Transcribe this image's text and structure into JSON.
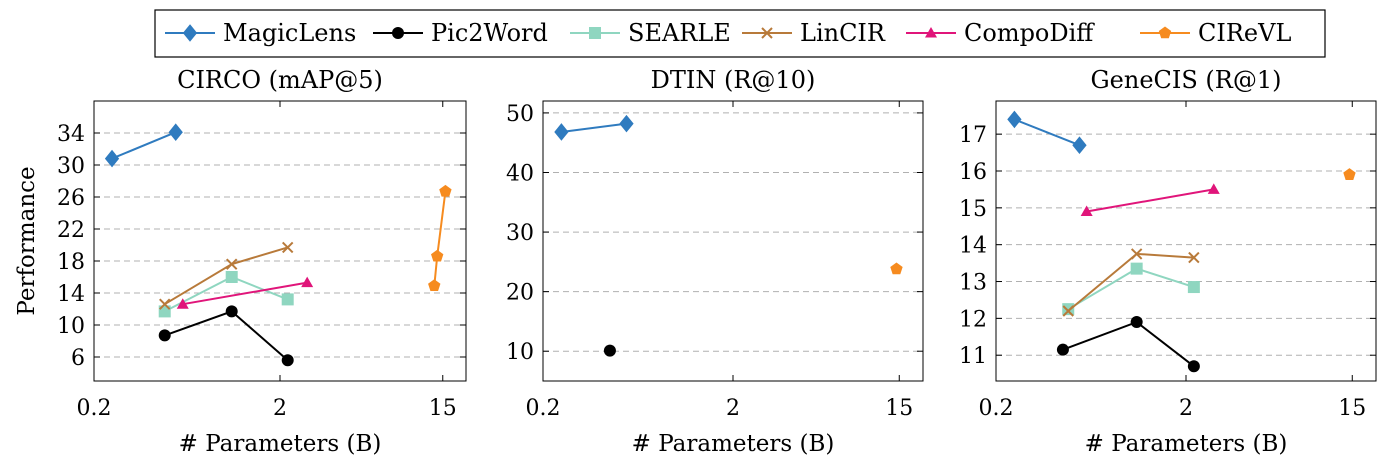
{
  "chart_data": {
    "type": "line",
    "legend": {
      "placement": "top",
      "entries": [
        "MagicLens",
        "Pic2Word",
        "SEARLE",
        "LinCIR",
        "CompoDiff",
        "CIReVL"
      ]
    },
    "series_styles": [
      {
        "name": "MagicLens",
        "color": "#2f7bbf",
        "marker": "diamond"
      },
      {
        "name": "Pic2Word",
        "color": "#000000",
        "marker": "circle"
      },
      {
        "name": "SEARLE",
        "color": "#8fd6c0",
        "marker": "square"
      },
      {
        "name": "LinCIR",
        "color": "#b87a3a",
        "marker": "cross"
      },
      {
        "name": "CompoDiff",
        "color": "#e0157a",
        "marker": "triangle"
      },
      {
        "name": "CIReVL",
        "color": "#f68b1f",
        "marker": "pentagon"
      }
    ],
    "x_scale": "log",
    "xlabel": "# Parameters (B)",
    "ylabel": "Performance",
    "grid": "horizontal-dashed",
    "panels": [
      {
        "title": "CIRCO (mAP@5)",
        "xlim": [
          0.2,
          20
        ],
        "xticks": [
          0.2,
          2,
          15
        ],
        "xtick_labels": [
          "0.2",
          "2",
          "15"
        ],
        "ylim": [
          3,
          38
        ],
        "yticks": [
          6,
          10,
          14,
          18,
          22,
          26,
          30,
          34
        ],
        "ytick_labels": [
          "6",
          "10",
          "14",
          "18",
          "22",
          "26",
          "30",
          "34"
        ],
        "show_ylabel": true,
        "series": [
          {
            "name": "MagicLens",
            "x": [
              0.25,
              0.55
            ],
            "y": [
              30.8,
              34.1
            ]
          },
          {
            "name": "Pic2Word",
            "x": [
              0.48,
              1.1,
              2.2
            ],
            "y": [
              8.7,
              11.7,
              5.6
            ]
          },
          {
            "name": "SEARLE",
            "x": [
              0.48,
              1.1,
              2.2
            ],
            "y": [
              11.7,
              16.0,
              13.2
            ]
          },
          {
            "name": "LinCIR",
            "x": [
              0.48,
              1.1,
              2.2
            ],
            "y": [
              12.6,
              17.6,
              19.7
            ]
          },
          {
            "name": "CompoDiff",
            "x": [
              0.6,
              2.8
            ],
            "y": [
              12.6,
              15.3
            ]
          },
          {
            "name": "CIReVL",
            "x": [
              13.5,
              14,
              15.5
            ],
            "y": [
              14.9,
              18.6,
              26.7
            ]
          }
        ]
      },
      {
        "title": "DTIN (R@10)",
        "xlim": [
          0.2,
          20
        ],
        "xticks": [
          0.2,
          2,
          15
        ],
        "xtick_labels": [
          "0.2",
          "2",
          "15"
        ],
        "ylim": [
          5,
          52
        ],
        "yticks": [
          10,
          20,
          30,
          40,
          50
        ],
        "ytick_labels": [
          "10",
          "20",
          "30",
          "40",
          "50"
        ],
        "show_ylabel": false,
        "series": [
          {
            "name": "MagicLens",
            "x": [
              0.25,
              0.55
            ],
            "y": [
              46.8,
              48.2
            ]
          },
          {
            "name": "Pic2Word",
            "x": [
              0.45
            ],
            "y": [
              10.1
            ]
          },
          {
            "name": "CIReVL",
            "x": [
              14.5
            ],
            "y": [
              23.8
            ]
          }
        ]
      },
      {
        "title": "GeneCIS (R@1)",
        "xlim": [
          0.2,
          20
        ],
        "xticks": [
          0.2,
          2,
          15
        ],
        "xtick_labels": [
          "0.2",
          "2",
          "15"
        ],
        "ylim": [
          10.3,
          17.9
        ],
        "yticks": [
          11,
          12,
          13,
          14,
          15,
          16,
          17
        ],
        "ytick_labels": [
          "11",
          "12",
          "13",
          "14",
          "15",
          "16",
          "17"
        ],
        "show_ylabel": false,
        "series": [
          {
            "name": "MagicLens",
            "x": [
              0.25,
              0.55
            ],
            "y": [
              17.4,
              16.7
            ]
          },
          {
            "name": "Pic2Word",
            "x": [
              0.45,
              1.1,
              2.2
            ],
            "y": [
              11.15,
              11.9,
              10.7
            ]
          },
          {
            "name": "SEARLE",
            "x": [
              0.48,
              1.1,
              2.2
            ],
            "y": [
              12.25,
              13.35,
              12.85
            ]
          },
          {
            "name": "LinCIR",
            "x": [
              0.48,
              1.1,
              2.2
            ],
            "y": [
              12.2,
              13.75,
              13.65
            ]
          },
          {
            "name": "CompoDiff",
            "x": [
              0.6,
              2.8
            ],
            "y": [
              14.9,
              15.5
            ]
          },
          {
            "name": "CIReVL",
            "x": [
              14.5
            ],
            "y": [
              15.9
            ]
          }
        ]
      }
    ]
  }
}
